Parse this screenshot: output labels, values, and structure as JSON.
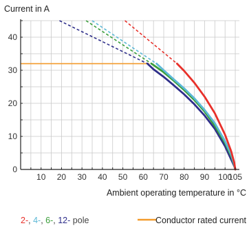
{
  "chart_data": {
    "type": "line",
    "ylabel": "Current in A",
    "xlabel": "Ambient operating temperature in °C",
    "xlim": [
      0,
      107
    ],
    "ylim": [
      0,
      45
    ],
    "x_ticks": [
      10,
      20,
      30,
      40,
      50,
      60,
      70,
      80,
      90,
      100,
      105
    ],
    "y_ticks": [
      0,
      10,
      20,
      30,
      40
    ],
    "grid": true,
    "conductor_rated_current": {
      "name": "Conductor rated current",
      "value": 32,
      "color": "#f39a2a",
      "x_end": 63
    },
    "legend_pole_parts": [
      {
        "text": "2-",
        "color": "#e8302a"
      },
      {
        "text": ", ",
        "color": "#444444"
      },
      {
        "text": "4-",
        "color": "#5cb8d6"
      },
      {
        "text": ", ",
        "color": "#444444"
      },
      {
        "text": "6-",
        "color": "#3a9e3a"
      },
      {
        "text": ", ",
        "color": "#444444"
      },
      {
        "text": "12-",
        "color": "#2e2e8a"
      },
      {
        "text": " pole",
        "color": "#444444"
      }
    ],
    "series": [
      {
        "name": "2-pole",
        "color": "#e8302a",
        "dashed": [
          [
            51,
            45
          ],
          [
            76.5,
            32
          ]
        ],
        "solid": [
          [
            76.5,
            32
          ],
          [
            80,
            29.8
          ],
          [
            85,
            26.2
          ],
          [
            90,
            22.0
          ],
          [
            95,
            17.0
          ],
          [
            100,
            10.5
          ],
          [
            103,
            5.5
          ],
          [
            104.5,
            2
          ],
          [
            105,
            0
          ]
        ]
      },
      {
        "name": "4-pole",
        "color": "#5cb8d6",
        "dashed": [
          [
            35,
            45
          ],
          [
            66.5,
            32
          ]
        ],
        "solid": [
          [
            66.5,
            32
          ],
          [
            70,
            30.0
          ],
          [
            75,
            27.2
          ],
          [
            80,
            24.5
          ],
          [
            85,
            21.5
          ],
          [
            90,
            18.0
          ],
          [
            95,
            14.0
          ],
          [
            100,
            8.5
          ],
          [
            103,
            4.5
          ],
          [
            104.5,
            1.5
          ],
          [
            105,
            0
          ]
        ]
      },
      {
        "name": "6-pole",
        "color": "#3a9e3a",
        "dashed": [
          [
            32,
            45
          ],
          [
            64,
            32
          ]
        ],
        "solid": [
          [
            64,
            32
          ],
          [
            70,
            29.4
          ],
          [
            75,
            26.8
          ],
          [
            80,
            24.0
          ],
          [
            85,
            21.0
          ],
          [
            90,
            17.5
          ],
          [
            95,
            13.2
          ],
          [
            100,
            8.0
          ],
          [
            103,
            4.0
          ],
          [
            104.5,
            1.3
          ],
          [
            105,
            0
          ]
        ]
      },
      {
        "name": "12-pole",
        "color": "#2e2e8a",
        "dashed": [
          [
            19,
            45
          ],
          [
            62,
            32
          ]
        ],
        "solid": [
          [
            62,
            32
          ],
          [
            65,
            30.3
          ],
          [
            70,
            28.0
          ],
          [
            75,
            25.4
          ],
          [
            80,
            22.7
          ],
          [
            85,
            19.7
          ],
          [
            90,
            16.3
          ],
          [
            95,
            12.3
          ],
          [
            100,
            7.0
          ],
          [
            103,
            3.0
          ],
          [
            104.5,
            1.0
          ],
          [
            105,
            0
          ]
        ]
      }
    ]
  }
}
